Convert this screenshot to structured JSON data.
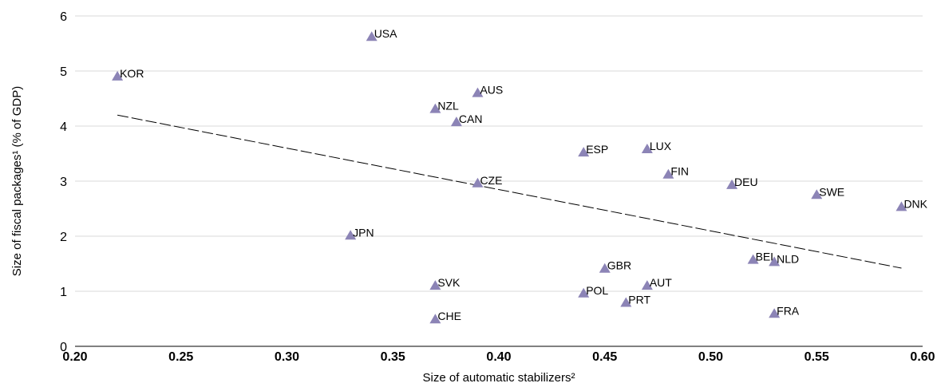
{
  "chart_data": {
    "type": "scatter",
    "xlabel": "Size of automatic stabilizers²",
    "ylabel": "Size of fiscal packages¹ (% of GDP)",
    "xlim": [
      0.2,
      0.6
    ],
    "ylim": [
      0,
      6
    ],
    "x_ticks": [
      "0.20",
      "0.25",
      "0.30",
      "0.35",
      "0.40",
      "0.45",
      "0.50",
      "0.55",
      "0.60"
    ],
    "y_ticks": [
      "0",
      "1",
      "2",
      "3",
      "4",
      "5",
      "6"
    ],
    "grid": "horizontal",
    "marker_color": "#8c84b6",
    "points": [
      {
        "label": "KOR",
        "x": 0.22,
        "y": 4.9
      },
      {
        "label": "USA",
        "x": 0.34,
        "y": 5.62
      },
      {
        "label": "AUS",
        "x": 0.39,
        "y": 4.6
      },
      {
        "label": "NZL",
        "x": 0.37,
        "y": 4.31
      },
      {
        "label": "CAN",
        "x": 0.38,
        "y": 4.07
      },
      {
        "label": "ESP",
        "x": 0.44,
        "y": 3.52
      },
      {
        "label": "LUX",
        "x": 0.47,
        "y": 3.58
      },
      {
        "label": "FIN",
        "x": 0.48,
        "y": 3.12
      },
      {
        "label": "CZE",
        "x": 0.39,
        "y": 2.96
      },
      {
        "label": "DEU",
        "x": 0.51,
        "y": 2.93
      },
      {
        "label": "SWE",
        "x": 0.55,
        "y": 2.75
      },
      {
        "label": "DNK",
        "x": 0.59,
        "y": 2.53
      },
      {
        "label": "JPN",
        "x": 0.33,
        "y": 2.01
      },
      {
        "label": "BEL",
        "x": 0.52,
        "y": 1.57
      },
      {
        "label": "NLD",
        "x": 0.53,
        "y": 1.53
      },
      {
        "label": "GBR",
        "x": 0.45,
        "y": 1.41
      },
      {
        "label": "SVK",
        "x": 0.37,
        "y": 1.1
      },
      {
        "label": "AUT",
        "x": 0.47,
        "y": 1.1
      },
      {
        "label": "POL",
        "x": 0.44,
        "y": 0.96
      },
      {
        "label": "PRT",
        "x": 0.46,
        "y": 0.79
      },
      {
        "label": "FRA",
        "x": 0.53,
        "y": 0.59
      },
      {
        "label": "CHE",
        "x": 0.37,
        "y": 0.49
      }
    ],
    "trendline": {
      "style": "dashed",
      "x": [
        0.22,
        0.59
      ],
      "y": [
        4.2,
        1.42
      ]
    }
  }
}
